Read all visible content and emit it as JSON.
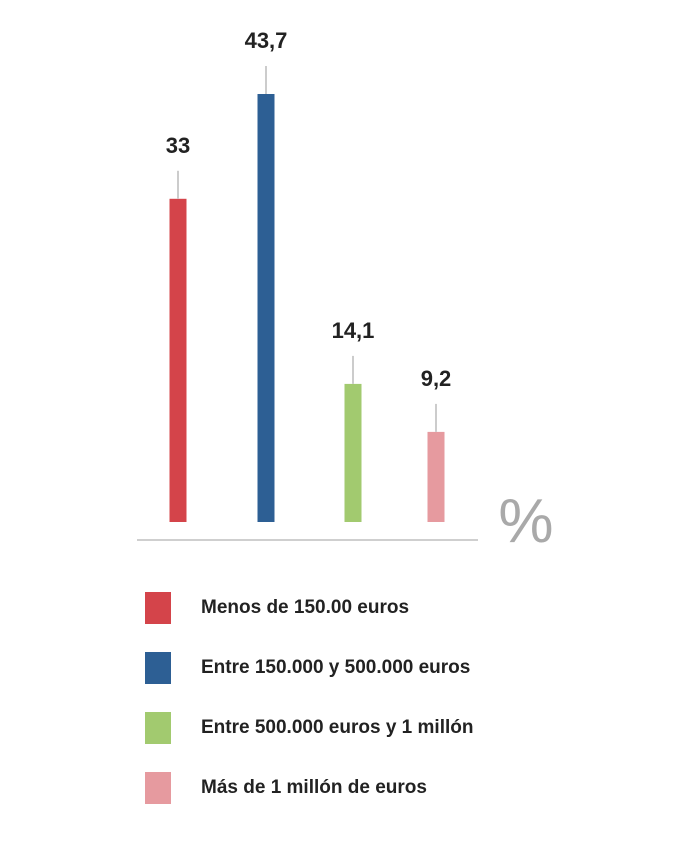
{
  "chart_data": {
    "type": "bar",
    "categories": [
      "Menos de 150.00 euros",
      "Entre 150.000 y 500.000 euros",
      "Entre 500.000 euros y 1 millón",
      "Más de 1 millón de euros"
    ],
    "values": [
      33,
      43.7,
      14.1,
      9.2
    ],
    "value_labels": [
      "33",
      "43,7",
      "14,1",
      "9,2"
    ],
    "colors": [
      "#d4444a",
      "#2d5f94",
      "#a2ca6f",
      "#e69a9f"
    ],
    "unit": "%",
    "ylim": [
      0,
      43.7
    ],
    "grid": false,
    "legend_position": "bottom"
  }
}
